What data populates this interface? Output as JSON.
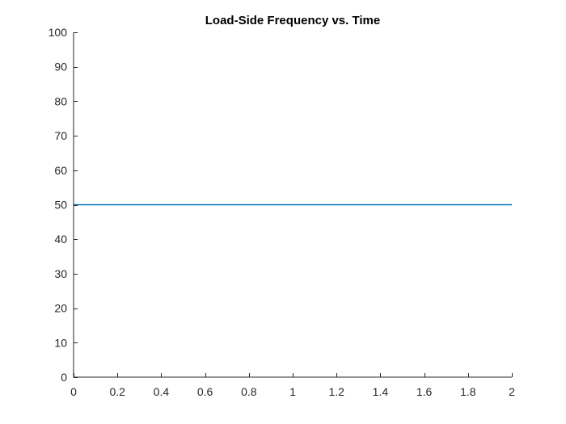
{
  "chart_data": {
    "type": "line",
    "title": "Load-Side Frequency vs. Time",
    "xlabel": "",
    "ylabel": "",
    "xlim": [
      0,
      2
    ],
    "ylim": [
      0,
      100
    ],
    "xticks": [
      0,
      0.2,
      0.4,
      0.6,
      0.8,
      1,
      1.2,
      1.4,
      1.6,
      1.8,
      2
    ],
    "xtick_labels": [
      "0",
      "0.2",
      "0.4",
      "0.6",
      "0.8",
      "1",
      "1.2",
      "1.4",
      "1.6",
      "1.8",
      "2"
    ],
    "yticks": [
      0,
      10,
      20,
      30,
      40,
      50,
      60,
      70,
      80,
      90,
      100
    ],
    "ytick_labels": [
      "0",
      "10",
      "20",
      "30",
      "40",
      "50",
      "60",
      "70",
      "80",
      "90",
      "100"
    ],
    "grid": false,
    "series": [
      {
        "color": "#0072BD",
        "x": [
          0,
          2
        ],
        "y": [
          50,
          50
        ]
      }
    ]
  }
}
